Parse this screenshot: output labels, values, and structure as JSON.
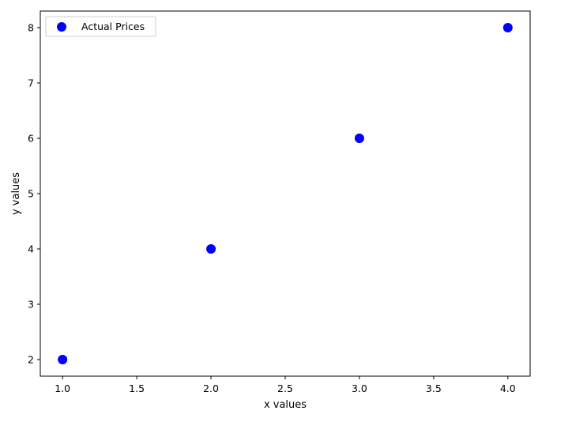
{
  "chart_data": {
    "type": "scatter",
    "title": "",
    "xlabel": "x values",
    "ylabel": "y values",
    "xlim": [
      0.85,
      4.15
    ],
    "ylim": [
      1.7,
      8.3
    ],
    "x_ticks": [
      "1.0",
      "1.5",
      "2.0",
      "2.5",
      "3.0",
      "3.5",
      "4.0"
    ],
    "y_ticks": [
      "2",
      "3",
      "4",
      "5",
      "6",
      "7",
      "8"
    ],
    "grid": false,
    "legend": {
      "position": "top-left"
    },
    "series": [
      {
        "name": "Actual Prices",
        "color": "#0000ff",
        "marker": "circle",
        "x": [
          1,
          2,
          3,
          4
        ],
        "y": [
          2,
          4,
          6,
          8
        ]
      }
    ]
  }
}
